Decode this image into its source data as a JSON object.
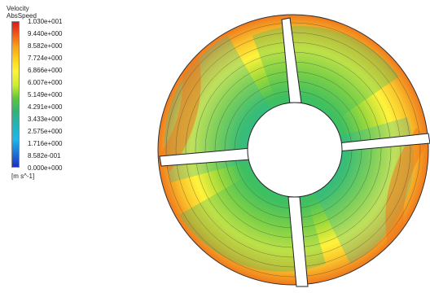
{
  "legend": {
    "title_line1": "Velocity",
    "title_line2": "AbsSpeed",
    "ticks": [
      "1.030e+001",
      "9.440e+000",
      "8.582e+000",
      "7.724e+000",
      "6.866e+000",
      "6.007e+000",
      "5.149e+000",
      "4.291e+000",
      "3.433e+000",
      "2.575e+000",
      "1.716e+000",
      "8.582e-001",
      "0.000e+000"
    ],
    "units": "[m s^-1]",
    "colors": [
      "#d7191c",
      "#f0541a",
      "#f7a11a",
      "#ffd81e",
      "#fff33b",
      "#c9ec2f",
      "#5cc53d",
      "#2fb37a",
      "#23b3c0",
      "#1cb7e6",
      "#1e78d8",
      "#1f2fbe"
    ]
  },
  "plot": {
    "blade_count": 4,
    "contour_colors": {
      "outer": "#f07a1d",
      "rim": "#f9c12a",
      "mid": "#fff33b",
      "inner": "#9bd93a",
      "core": "#3fc060",
      "deep": "#2bb5a8"
    }
  }
}
